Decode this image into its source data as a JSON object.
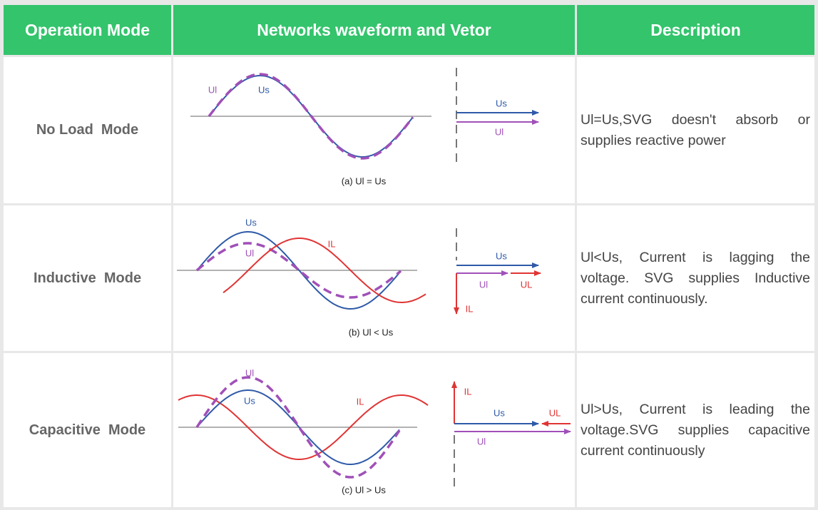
{
  "header": [
    "Operation Mode",
    "Networks waveform and Vetor",
    "Description"
  ],
  "rows": [
    {
      "mode": "No Load  Mode",
      "caption": "(a)  Ul = Us",
      "wave_labels": [
        "Ul",
        "Us"
      ],
      "vector_labels": [
        "Us",
        "Ul"
      ],
      "description": "Ul=Us,SVG doesn't absorb or supplies reactive power"
    },
    {
      "mode": "Inductive  Mode",
      "caption": "(b)  Ul < Us",
      "wave_labels": [
        "Us",
        "Ul",
        "IL"
      ],
      "vector_labels": [
        "Us",
        "Ul",
        "UL",
        "IL"
      ],
      "description": "Ul<Us, Current is lagging the voltage. SVG supplies Inductive current continuously."
    },
    {
      "mode": "Capacitive  Mode",
      "caption": "(c)  Ul > Us",
      "wave_labels": [
        "Ul",
        "Us",
        "IL"
      ],
      "vector_labels": [
        "IL",
        "Us",
        "UL",
        "Ul"
      ],
      "description": "Ul>Us, Current is leading the voltage.SVG supplies capacitive current continuously"
    }
  ]
}
